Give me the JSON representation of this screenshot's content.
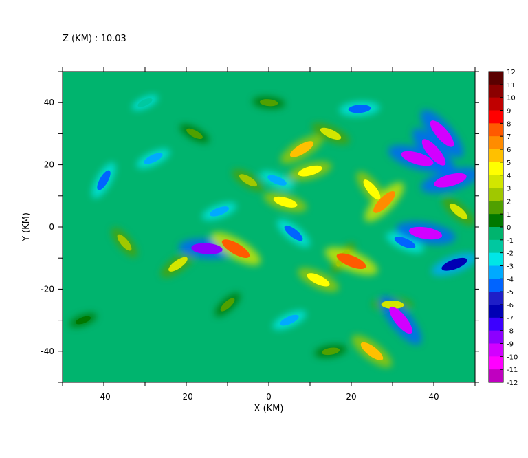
{
  "header": {
    "title": "Z (KM) : 10.03"
  },
  "chart_data": {
    "type": "heatmap",
    "title": "Z (KM) : 10.03",
    "xlabel": "X (KM)",
    "ylabel": "Y (KM)",
    "xlim": [
      -50,
      50
    ],
    "ylim": [
      -50,
      50
    ],
    "x_ticks": [
      -40,
      -20,
      0,
      20,
      40
    ],
    "y_ticks": [
      -40,
      -20,
      0,
      20,
      40
    ],
    "colorbar": {
      "min": -12,
      "max": 12,
      "levels": [
        12,
        11,
        10,
        9,
        8,
        7,
        6,
        5,
        4,
        3,
        2,
        1,
        0,
        -1,
        -2,
        -3,
        -4,
        -5,
        -6,
        -7,
        -8,
        -9,
        -10,
        -11,
        -12
      ],
      "colors": [
        "#5a0000",
        "#8b0000",
        "#c00000",
        "#ff0000",
        "#ff5a00",
        "#ff8c00",
        "#ffc000",
        "#ffff00",
        "#d2e600",
        "#a0c800",
        "#50a000",
        "#007800",
        "#00b46e",
        "#00c8a0",
        "#00e6e6",
        "#00aaff",
        "#0064ff",
        "#1e1ec8",
        "#0000b4",
        "#3c00ff",
        "#8c00ff",
        "#d200ff",
        "#ff00ff",
        "#c000c0",
        "#640064"
      ]
    },
    "background_value": 0,
    "field_features": [
      {
        "x": -40,
        "y": 15,
        "value": -4
      },
      {
        "x": -35,
        "y": -5,
        "value": 3
      },
      {
        "x": -28,
        "y": 22,
        "value": -3
      },
      {
        "x": -22,
        "y": -12,
        "value": 4
      },
      {
        "x": -18,
        "y": 30,
        "value": 2
      },
      {
        "x": -15,
        "y": -7,
        "value": -8
      },
      {
        "x": -12,
        "y": 5,
        "value": -3
      },
      {
        "x": -8,
        "y": -7,
        "value": 8
      },
      {
        "x": -5,
        "y": 15,
        "value": 3
      },
      {
        "x": 0,
        "y": 40,
        "value": 2
      },
      {
        "x": 2,
        "y": 15,
        "value": -3
      },
      {
        "x": 4,
        "y": 8,
        "value": 5
      },
      {
        "x": 6,
        "y": -2,
        "value": -4
      },
      {
        "x": 8,
        "y": 25,
        "value": 6
      },
      {
        "x": 10,
        "y": 18,
        "value": 5
      },
      {
        "x": 12,
        "y": -17,
        "value": 5
      },
      {
        "x": 15,
        "y": 30,
        "value": 4
      },
      {
        "x": 18,
        "y": -10,
        "value": 3
      },
      {
        "x": 20,
        "y": -11,
        "value": 8
      },
      {
        "x": 22,
        "y": 38,
        "value": -4
      },
      {
        "x": 25,
        "y": 12,
        "value": 5
      },
      {
        "x": 25,
        "y": -40,
        "value": 6
      },
      {
        "x": 28,
        "y": 8,
        "value": 7
      },
      {
        "x": 30,
        "y": -25,
        "value": 4
      },
      {
        "x": 32,
        "y": -30,
        "value": -9
      },
      {
        "x": 33,
        "y": -5,
        "value": -4
      },
      {
        "x": 36,
        "y": 22,
        "value": -9
      },
      {
        "x": 38,
        "y": -2,
        "value": -9
      },
      {
        "x": 40,
        "y": 24,
        "value": -9
      },
      {
        "x": 42,
        "y": 30,
        "value": -9
      },
      {
        "x": 44,
        "y": 15,
        "value": -9
      },
      {
        "x": 45,
        "y": -12,
        "value": -6
      },
      {
        "x": 46,
        "y": 5,
        "value": 4
      },
      {
        "x": -45,
        "y": -30,
        "value": 1
      },
      {
        "x": -10,
        "y": -25,
        "value": 2
      },
      {
        "x": 5,
        "y": -30,
        "value": -3
      },
      {
        "x": 15,
        "y": -40,
        "value": 2
      },
      {
        "x": -30,
        "y": 40,
        "value": -1
      }
    ]
  }
}
